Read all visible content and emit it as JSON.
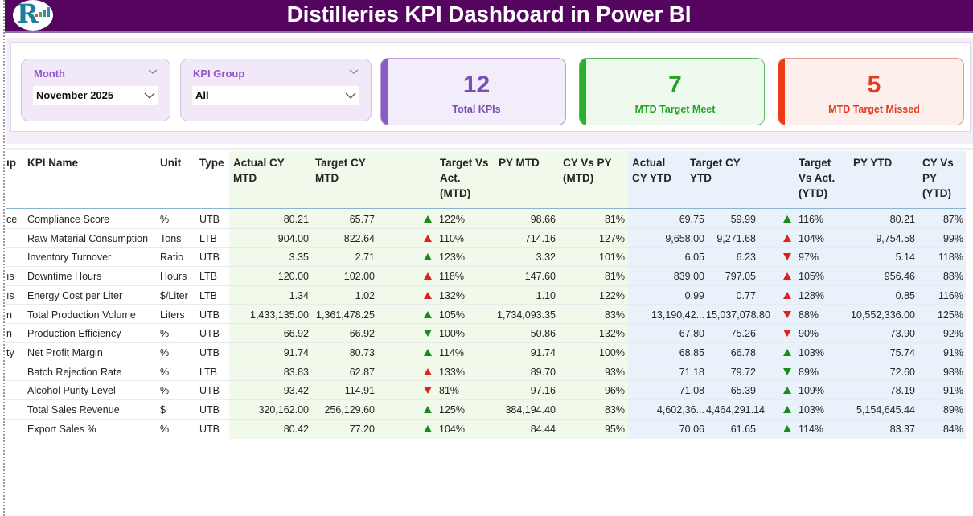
{
  "header": {
    "title": "Distilleries KPI Dashboard in Power BI",
    "logo_icon": "rk-logo-icon",
    "brand_color": "#55045f"
  },
  "filters": {
    "month": {
      "label": "Month",
      "value": "November 2025"
    },
    "kpi_group": {
      "label": "KPI Group",
      "value": "All"
    }
  },
  "cards": {
    "total": {
      "value": "12",
      "label": "Total KPIs",
      "color": "#7a4fb3"
    },
    "meet": {
      "value": "7",
      "label": "MTD Target Meet",
      "color": "#27a127"
    },
    "missed": {
      "value": "5",
      "label": "MTD Target Missed",
      "color": "#e33b1c"
    }
  },
  "table": {
    "columns": {
      "group": "ıp",
      "kpi_name": "KPI Name",
      "unit": "Unit",
      "type": "Type",
      "actual_mtd": "Actual CY MTD",
      "target_mtd": "Target CY MTD",
      "tva_mtd": "Target Vs Act. (MTD)",
      "py_mtd": "PY MTD",
      "cyvspy_mtd": "CY Vs PY (MTD)",
      "actual_ytd": "Actual CY YTD",
      "target_ytd": "Target CY YTD",
      "tva_ytd": "Target Vs Act. (YTD)",
      "py_ytd": "PY YTD",
      "cyvspy_ytd": "CY Vs PY (YTD)"
    },
    "column_lines": {
      "group": "ıp",
      "actual_mtd": [
        "Actual CY",
        "MTD"
      ],
      "target_mtd": [
        "Target CY",
        "MTD"
      ],
      "tva_mtd": [
        "Target Vs",
        "Act.",
        "(MTD)"
      ],
      "py_mtd": [
        "PY MTD"
      ],
      "cyvspy_mtd": [
        "CY Vs PY",
        "(MTD)"
      ],
      "actual_ytd": [
        "Actual",
        "CY YTD"
      ],
      "target_ytd": [
        "Target CY",
        "YTD"
      ],
      "tva_ytd": [
        "Target",
        "Vs Act.",
        "(YTD)"
      ],
      "py_ytd": [
        "PY YTD"
      ],
      "cyvspy_ytd": [
        "CY Vs",
        "PY",
        "(YTD)"
      ]
    },
    "rows": [
      {
        "group": "ce",
        "kpi": "Compliance Score",
        "unit": "%",
        "type": "UTB",
        "actual_mtd": "80.21",
        "target_mtd": "65.77",
        "tva_mtd_icon": "up",
        "tva_mtd_color": "green",
        "tva_mtd": "122%",
        "py_mtd": "98.66",
        "cyvspy_mtd": "81%",
        "actual_ytd": "69.75",
        "target_ytd": "59.99",
        "tva_ytd_icon": "up",
        "tva_ytd_color": "green",
        "tva_ytd": "116%",
        "py_ytd": "80.21",
        "cyvspy_ytd": "87%"
      },
      {
        "group": "",
        "kpi": "Raw Material Consumption",
        "unit": "Tons",
        "type": "LTB",
        "actual_mtd": "904.00",
        "target_mtd": "822.64",
        "tva_mtd_icon": "up",
        "tva_mtd_color": "red",
        "tva_mtd": "110%",
        "py_mtd": "714.16",
        "cyvspy_mtd": "127%",
        "actual_ytd": "9,658.00",
        "target_ytd": "9,271.68",
        "tva_ytd_icon": "up",
        "tva_ytd_color": "red",
        "tva_ytd": "104%",
        "py_ytd": "9,754.58",
        "cyvspy_ytd": "99%"
      },
      {
        "group": "",
        "kpi": "Inventory Turnover",
        "unit": "Ratio",
        "type": "UTB",
        "actual_mtd": "3.35",
        "target_mtd": "2.71",
        "tva_mtd_icon": "up",
        "tva_mtd_color": "green",
        "tva_mtd": "123%",
        "py_mtd": "3.32",
        "cyvspy_mtd": "101%",
        "actual_ytd": "6.05",
        "target_ytd": "6.23",
        "tva_ytd_icon": "down",
        "tva_ytd_color": "red",
        "tva_ytd": "97%",
        "py_ytd": "5.14",
        "cyvspy_ytd": "118%"
      },
      {
        "group": "ıs",
        "kpi": "Downtime Hours",
        "unit": "Hours",
        "type": "LTB",
        "actual_mtd": "120.00",
        "target_mtd": "102.00",
        "tva_mtd_icon": "up",
        "tva_mtd_color": "red",
        "tva_mtd": "118%",
        "py_mtd": "147.60",
        "cyvspy_mtd": "81%",
        "actual_ytd": "839.00",
        "target_ytd": "797.05",
        "tva_ytd_icon": "up",
        "tva_ytd_color": "red",
        "tva_ytd": "105%",
        "py_ytd": "956.46",
        "cyvspy_ytd": "88%"
      },
      {
        "group": "ıs",
        "kpi": "Energy Cost per Liter",
        "unit": "$/Liter",
        "type": "LTB",
        "actual_mtd": "1.34",
        "target_mtd": "1.02",
        "tva_mtd_icon": "up",
        "tva_mtd_color": "red",
        "tva_mtd": "132%",
        "py_mtd": "1.10",
        "cyvspy_mtd": "122%",
        "actual_ytd": "0.99",
        "target_ytd": "0.77",
        "tva_ytd_icon": "up",
        "tva_ytd_color": "red",
        "tva_ytd": "128%",
        "py_ytd": "0.85",
        "cyvspy_ytd": "116%"
      },
      {
        "group": "n",
        "kpi": "Total Production Volume",
        "unit": "Liters",
        "type": "UTB",
        "actual_mtd": "1,433,135.00",
        "target_mtd": "1,361,478.25",
        "tva_mtd_icon": "up",
        "tva_mtd_color": "green",
        "tva_mtd": "105%",
        "py_mtd": "1,734,093.35",
        "cyvspy_mtd": "83%",
        "actual_ytd": "13,190,42...",
        "target_ytd": "15,037,078.80",
        "tva_ytd_icon": "down",
        "tva_ytd_color": "red",
        "tva_ytd": "88%",
        "py_ytd": "10,552,336.00",
        "cyvspy_ytd": "125%"
      },
      {
        "group": "n",
        "kpi": "Production Efficiency",
        "unit": "%",
        "type": "UTB",
        "actual_mtd": "66.92",
        "target_mtd": "66.92",
        "tva_mtd_icon": "down",
        "tva_mtd_color": "green",
        "tva_mtd": "100%",
        "py_mtd": "50.86",
        "cyvspy_mtd": "132%",
        "actual_ytd": "67.80",
        "target_ytd": "75.26",
        "tva_ytd_icon": "down",
        "tva_ytd_color": "red",
        "tva_ytd": "90%",
        "py_ytd": "73.90",
        "cyvspy_ytd": "92%"
      },
      {
        "group": "ty",
        "kpi": "Net Profit Margin",
        "unit": "%",
        "type": "UTB",
        "actual_mtd": "91.74",
        "target_mtd": "80.73",
        "tva_mtd_icon": "up",
        "tva_mtd_color": "green",
        "tva_mtd": "114%",
        "py_mtd": "91.74",
        "cyvspy_mtd": "100%",
        "actual_ytd": "68.85",
        "target_ytd": "66.78",
        "tva_ytd_icon": "up",
        "tva_ytd_color": "green",
        "tva_ytd": "103%",
        "py_ytd": "75.74",
        "cyvspy_ytd": "91%"
      },
      {
        "group": "",
        "kpi": "Batch Rejection Rate",
        "unit": "%",
        "type": "LTB",
        "actual_mtd": "83.83",
        "target_mtd": "62.87",
        "tva_mtd_icon": "up",
        "tva_mtd_color": "red",
        "tva_mtd": "133%",
        "py_mtd": "89.70",
        "cyvspy_mtd": "93%",
        "actual_ytd": "71.18",
        "target_ytd": "79.72",
        "tva_ytd_icon": "down",
        "tva_ytd_color": "green",
        "tva_ytd": "89%",
        "py_ytd": "72.60",
        "cyvspy_ytd": "98%"
      },
      {
        "group": "",
        "kpi": "Alcohol Purity Level",
        "unit": "%",
        "type": "UTB",
        "actual_mtd": "93.42",
        "target_mtd": "114.91",
        "tva_mtd_icon": "down",
        "tva_mtd_color": "red",
        "tva_mtd": "81%",
        "py_mtd": "97.16",
        "cyvspy_mtd": "96%",
        "actual_ytd": "71.08",
        "target_ytd": "65.39",
        "tva_ytd_icon": "up",
        "tva_ytd_color": "green",
        "tva_ytd": "109%",
        "py_ytd": "78.19",
        "cyvspy_ytd": "91%"
      },
      {
        "group": "",
        "kpi": "Total Sales Revenue",
        "unit": "$",
        "type": "UTB",
        "actual_mtd": "320,162.00",
        "target_mtd": "256,129.60",
        "tva_mtd_icon": "up",
        "tva_mtd_color": "green",
        "tva_mtd": "125%",
        "py_mtd": "384,194.40",
        "cyvspy_mtd": "83%",
        "actual_ytd": "4,602,36...",
        "target_ytd": "4,464,291.14",
        "tva_ytd_icon": "up",
        "tva_ytd_color": "green",
        "tva_ytd": "103%",
        "py_ytd": "5,154,645.44",
        "cyvspy_ytd": "89%"
      },
      {
        "group": "",
        "kpi": "Export Sales %",
        "unit": "%",
        "type": "UTB",
        "actual_mtd": "80.42",
        "target_mtd": "77.20",
        "tva_mtd_icon": "up",
        "tva_mtd_color": "green",
        "tva_mtd": "104%",
        "py_mtd": "84.44",
        "cyvspy_mtd": "95%",
        "actual_ytd": "70.06",
        "target_ytd": "61.65",
        "tva_ytd_icon": "up",
        "tva_ytd_color": "green",
        "tva_ytd": "114%",
        "py_ytd": "83.37",
        "cyvspy_ytd": "84%"
      }
    ]
  }
}
